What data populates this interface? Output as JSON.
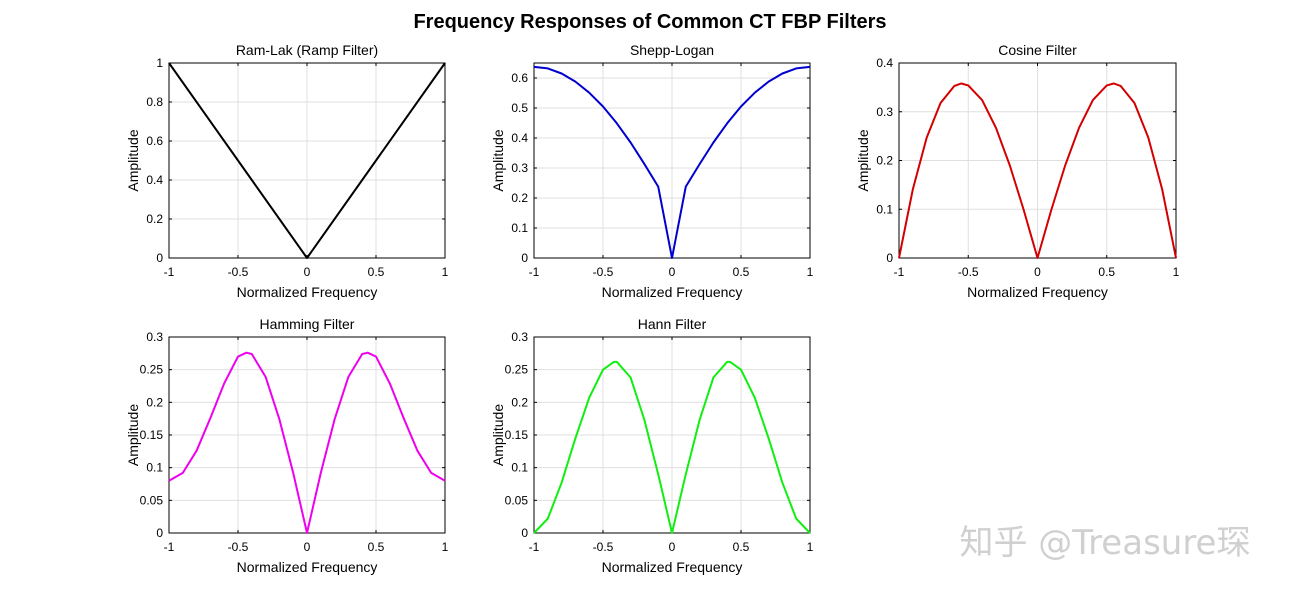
{
  "figure_title": "Frequency Responses of Common CT FBP Filters",
  "watermark": "知乎 @Treasure琛",
  "colors": {
    "black": "#000000",
    "blue": "#0000d0",
    "red": "#d40000",
    "magenta": "#ee00ee",
    "green": "#11ee11"
  },
  "chart_data": [
    {
      "type": "line",
      "title": "Ram-Lak (Ramp Filter)",
      "xlabel": "Normalized Frequency",
      "ylabel": "Amplitude",
      "xlim": [
        -1,
        1
      ],
      "ylim": [
        0,
        1
      ],
      "xticks": [
        -1,
        -0.5,
        0,
        0.5,
        1
      ],
      "xtick_labels": [
        "-1",
        "-0.5",
        "0",
        "0.5",
        "1"
      ],
      "yticks": [
        0,
        0.2,
        0.4,
        0.6,
        0.8,
        1
      ],
      "ytick_labels": [
        "0",
        "0.2",
        "0.4",
        "0.6",
        "0.8",
        "1"
      ],
      "grid": true,
      "color": "#000000",
      "series": [
        {
          "x": [
            -1,
            -0.5,
            0,
            0.5,
            1
          ],
          "y": [
            1,
            0.5,
            0,
            0.5,
            1
          ]
        }
      ]
    },
    {
      "type": "line",
      "title": "Shepp-Logan",
      "xlabel": "Normalized Frequency",
      "ylabel": "Amplitude",
      "xlim": [
        -1,
        1
      ],
      "ylim": [
        0,
        0.65
      ],
      "xticks": [
        -1,
        -0.5,
        0,
        0.5,
        1
      ],
      "xtick_labels": [
        "-1",
        "-0.5",
        "0",
        "0.5",
        "1"
      ],
      "yticks": [
        0,
        0.1,
        0.2,
        0.3,
        0.4,
        0.5,
        0.6
      ],
      "ytick_labels": [
        "0",
        "0.1",
        "0.2",
        "0.3",
        "0.4",
        "0.5",
        "0.6"
      ],
      "grid": true,
      "color": "#0000d0",
      "series": [
        {
          "x": [
            -1,
            -0.9,
            -0.8,
            -0.7,
            -0.6,
            -0.5,
            -0.4,
            -0.3,
            -0.2,
            -0.1,
            0,
            0.1,
            0.2,
            0.3,
            0.4,
            0.5,
            0.6,
            0.7,
            0.8,
            0.9,
            1
          ],
          "y": [
            0.637,
            0.632,
            0.615,
            0.588,
            0.551,
            0.505,
            0.449,
            0.385,
            0.313,
            0.238,
            0,
            0.238,
            0.313,
            0.385,
            0.449,
            0.505,
            0.551,
            0.588,
            0.615,
            0.632,
            0.637
          ]
        }
      ]
    },
    {
      "type": "line",
      "title": "Cosine Filter",
      "xlabel": "Normalized Frequency",
      "ylabel": "Amplitude",
      "xlim": [
        -1,
        1
      ],
      "ylim": [
        0,
        0.4
      ],
      "xticks": [
        -1,
        -0.5,
        0,
        0.5,
        1
      ],
      "xtick_labels": [
        "-1",
        "-0.5",
        "0",
        "0.5",
        "1"
      ],
      "yticks": [
        0,
        0.1,
        0.2,
        0.3,
        0.4
      ],
      "ytick_labels": [
        "0",
        "0.1",
        "0.2",
        "0.3",
        "0.4"
      ],
      "grid": true,
      "color": "#d40000",
      "series": [
        {
          "x": [
            -1,
            -0.9,
            -0.8,
            -0.7,
            -0.6,
            -0.55,
            -0.5,
            -0.4,
            -0.3,
            -0.2,
            -0.1,
            0,
            0.1,
            0.2,
            0.3,
            0.4,
            0.5,
            0.55,
            0.6,
            0.7,
            0.8,
            0.9,
            1
          ],
          "y": [
            0,
            0.141,
            0.247,
            0.318,
            0.353,
            0.358,
            0.354,
            0.324,
            0.267,
            0.19,
            0.099,
            0,
            0.099,
            0.19,
            0.267,
            0.324,
            0.354,
            0.358,
            0.353,
            0.318,
            0.247,
            0.141,
            0
          ]
        }
      ]
    },
    {
      "type": "line",
      "title": "Hamming Filter",
      "xlabel": "Normalized Frequency",
      "ylabel": "Amplitude",
      "xlim": [
        -1,
        1
      ],
      "ylim": [
        0,
        0.3
      ],
      "xticks": [
        -1,
        -0.5,
        0,
        0.5,
        1
      ],
      "xtick_labels": [
        "-1",
        "-0.5",
        "0",
        "0.5",
        "1"
      ],
      "yticks": [
        0,
        0.05,
        0.1,
        0.15,
        0.2,
        0.25,
        0.3
      ],
      "ytick_labels": [
        "0",
        "0.05",
        "0.1",
        "0.15",
        "0.2",
        "0.25",
        "0.3"
      ],
      "grid": true,
      "color": "#ee00ee",
      "series": [
        {
          "x": [
            -1,
            -0.9,
            -0.8,
            -0.7,
            -0.6,
            -0.5,
            -0.44,
            -0.4,
            -0.3,
            -0.2,
            -0.1,
            0,
            0.1,
            0.2,
            0.3,
            0.4,
            0.44,
            0.5,
            0.6,
            0.7,
            0.8,
            0.9,
            1
          ],
          "y": [
            0.08,
            0.092,
            0.126,
            0.176,
            0.229,
            0.27,
            0.276,
            0.274,
            0.239,
            0.174,
            0.092,
            0,
            0.092,
            0.174,
            0.239,
            0.274,
            0.276,
            0.27,
            0.229,
            0.176,
            0.126,
            0.092,
            0.08
          ]
        }
      ]
    },
    {
      "type": "line",
      "title": "Hann Filter",
      "xlabel": "Normalized Frequency",
      "ylabel": "Amplitude",
      "xlim": [
        -1,
        1
      ],
      "ylim": [
        0,
        0.3
      ],
      "xticks": [
        -1,
        -0.5,
        0,
        0.5,
        1
      ],
      "xtick_labels": [
        "-1",
        "-0.5",
        "0",
        "0.5",
        "1"
      ],
      "yticks": [
        0,
        0.05,
        0.1,
        0.15,
        0.2,
        0.25,
        0.3
      ],
      "ytick_labels": [
        "0",
        "0.05",
        "0.1",
        "0.15",
        "0.2",
        "0.25",
        "0.3"
      ],
      "grid": true,
      "color": "#11ee11",
      "series": [
        {
          "x": [
            -1,
            -0.9,
            -0.8,
            -0.7,
            -0.6,
            -0.5,
            -0.42,
            -0.4,
            -0.3,
            -0.2,
            -0.1,
            0,
            0.1,
            0.2,
            0.3,
            0.4,
            0.42,
            0.5,
            0.6,
            0.7,
            0.8,
            0.9,
            1
          ],
          "y": [
            0,
            0.022,
            0.077,
            0.145,
            0.207,
            0.25,
            0.262,
            0.262,
            0.238,
            0.173,
            0.09,
            0,
            0.09,
            0.173,
            0.238,
            0.262,
            0.262,
            0.25,
            0.207,
            0.145,
            0.077,
            0.022,
            0
          ]
        }
      ]
    }
  ]
}
